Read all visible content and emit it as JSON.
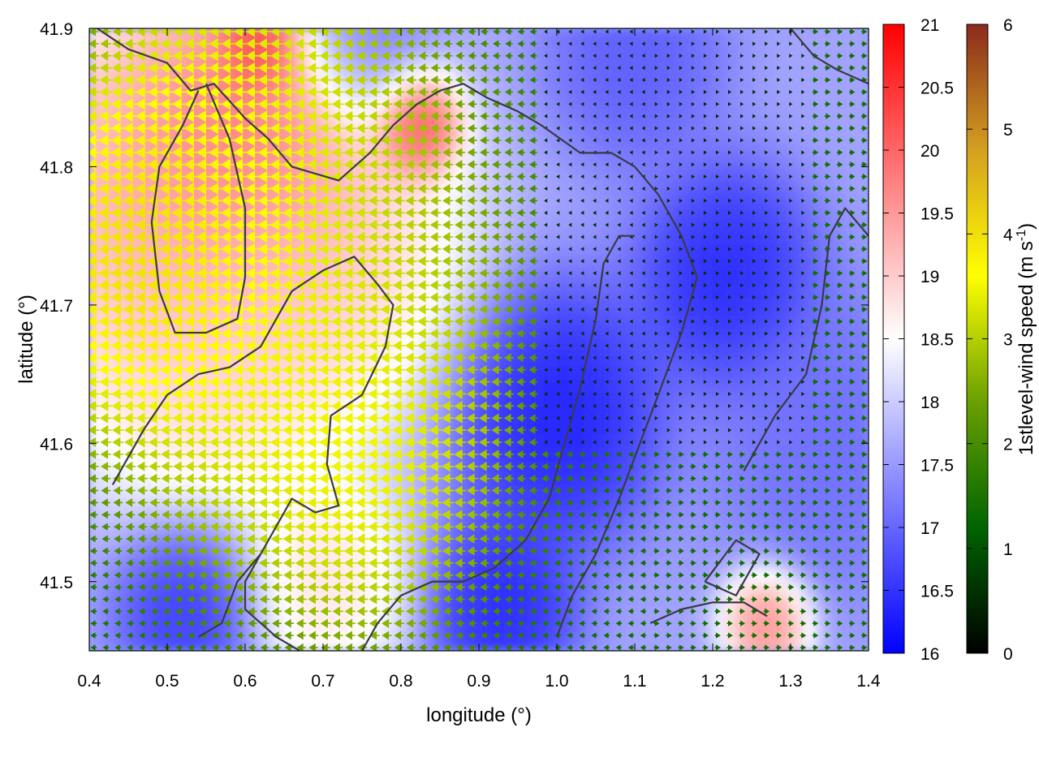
{
  "chart_data": {
    "type": "heatmap",
    "title": "",
    "xlabel": "longitude (°)",
    "ylabel": "latitude (°)",
    "xlim": [
      0.4,
      1.4
    ],
    "ylim": [
      41.45,
      41.9
    ],
    "xticks": [
      "0.4",
      "0.5",
      "0.6",
      "0.7",
      "0.8",
      "0.9",
      "1.0",
      "1.1",
      "1.2",
      "1.3",
      "1.4"
    ],
    "yticks": [
      "41.5",
      "41.6",
      "41.7",
      "41.8",
      "41.9"
    ],
    "temperature_colorbar": {
      "range": [
        16,
        21
      ],
      "ticks": [
        "16",
        "16.5",
        "17",
        "17.5",
        "18",
        "18.5",
        "19",
        "19.5",
        "20",
        "20.5",
        "21"
      ],
      "colors": [
        "#0000ff",
        "#ffffff",
        "#ff0000"
      ]
    },
    "wind_speed_colorbar": {
      "label_main": "1stlevel-wind speed (m s",
      "label_sup": "-1",
      "label_end": ")",
      "range": [
        0,
        6
      ],
      "ticks": [
        "0",
        "1",
        "2",
        "3",
        "4",
        "5",
        "6"
      ],
      "colors": [
        "#000000",
        "#006400",
        "#6aa000",
        "#ffff00",
        "#d4a020",
        "#8b2a1c"
      ]
    },
    "temperature_field_hotspots": [
      {
        "lon": 0.5,
        "lat": 41.78,
        "value": 19.6,
        "spread": 0.12
      },
      {
        "lon": 0.6,
        "lat": 41.82,
        "value": 20.3,
        "spread": 0.08
      },
      {
        "lon": 0.62,
        "lat": 41.89,
        "value": 21.0,
        "spread": 0.03
      },
      {
        "lon": 0.82,
        "lat": 41.83,
        "value": 20.8,
        "spread": 0.03
      },
      {
        "lon": 0.7,
        "lat": 41.74,
        "value": 19.2,
        "spread": 0.1
      },
      {
        "lon": 0.55,
        "lat": 41.66,
        "value": 19.0,
        "spread": 0.09
      },
      {
        "lon": 0.7,
        "lat": 41.5,
        "value": 19.0,
        "spread": 0.06
      },
      {
        "lon": 1.27,
        "lat": 41.47,
        "value": 20.0,
        "spread": 0.03
      },
      {
        "lon": 1.0,
        "lat": 41.62,
        "value": 16.1,
        "spread": 0.07
      },
      {
        "lon": 1.22,
        "lat": 41.72,
        "value": 16.2,
        "spread": 0.06
      },
      {
        "lon": 0.93,
        "lat": 41.48,
        "value": 16.2,
        "spread": 0.05
      },
      {
        "lon": 0.53,
        "lat": 41.48,
        "value": 16.4,
        "spread": 0.05
      },
      {
        "lon": 1.1,
        "lat": 41.88,
        "value": 16.8,
        "spread": 0.06
      },
      {
        "lon": 1.35,
        "lat": 41.6,
        "value": 17.0,
        "spread": 0.08
      },
      {
        "lon": 0.75,
        "lat": 41.89,
        "value": 17.0,
        "spread": 0.05
      }
    ],
    "wind_field_hotspots": [
      {
        "lon": 0.48,
        "lat": 41.74,
        "value": 4.8,
        "spread": 0.09
      },
      {
        "lon": 0.6,
        "lat": 41.82,
        "value": 4.0,
        "spread": 0.1
      },
      {
        "lon": 0.75,
        "lat": 41.6,
        "value": 4.0,
        "spread": 0.1
      },
      {
        "lon": 0.6,
        "lat": 41.7,
        "value": 3.8,
        "spread": 0.12
      },
      {
        "lon": 0.72,
        "lat": 41.76,
        "value": 3.2,
        "spread": 0.12
      }
    ],
    "coastline_polylines": [
      [
        [
          0.43,
          41.57
        ],
        [
          0.47,
          41.61
        ],
        [
          0.5,
          41.635
        ],
        [
          0.54,
          41.65
        ],
        [
          0.58,
          41.655
        ],
        [
          0.62,
          41.67
        ],
        [
          0.66,
          41.71
        ],
        [
          0.7,
          41.725
        ],
        [
          0.74,
          41.735
        ],
        [
          0.77,
          41.715
        ],
        [
          0.79,
          41.7
        ],
        [
          0.78,
          41.67
        ],
        [
          0.75,
          41.635
        ],
        [
          0.71,
          41.62
        ],
        [
          0.705,
          41.585
        ],
        [
          0.72,
          41.555
        ],
        [
          0.69,
          41.55
        ],
        [
          0.66,
          41.56
        ],
        [
          0.63,
          41.53
        ],
        [
          0.6,
          41.5
        ],
        [
          0.6,
          41.48
        ],
        [
          0.64,
          41.46
        ],
        [
          0.67,
          41.45
        ]
      ],
      [
        [
          0.54,
          41.46
        ],
        [
          0.57,
          41.47
        ],
        [
          0.59,
          41.5
        ],
        [
          0.62,
          41.52
        ]
      ],
      [
        [
          0.41,
          41.9
        ],
        [
          0.45,
          41.885
        ],
        [
          0.5,
          41.875
        ],
        [
          0.53,
          41.855
        ],
        [
          0.56,
          41.86
        ],
        [
          0.6,
          41.835
        ],
        [
          0.63,
          41.82
        ],
        [
          0.66,
          41.8
        ],
        [
          0.72,
          41.79
        ],
        [
          0.76,
          41.81
        ],
        [
          0.79,
          41.83
        ],
        [
          0.82,
          41.845
        ],
        [
          0.85,
          41.855
        ],
        [
          0.88,
          41.86
        ],
        [
          0.91,
          41.85
        ],
        [
          0.95,
          41.84
        ],
        [
          0.98,
          41.83
        ],
        [
          1.03,
          41.81
        ],
        [
          1.07,
          41.81
        ],
        [
          1.1,
          41.8
        ],
        [
          1.13,
          41.78
        ],
        [
          1.16,
          41.75
        ],
        [
          1.18,
          41.72
        ],
        [
          1.16,
          41.68
        ],
        [
          1.14,
          41.65
        ],
        [
          1.12,
          41.62
        ],
        [
          1.1,
          41.59
        ],
        [
          1.08,
          41.56
        ],
        [
          1.05,
          41.52
        ],
        [
          1.02,
          41.49
        ],
        [
          1.0,
          41.46
        ]
      ],
      [
        [
          0.55,
          41.86
        ],
        [
          0.58,
          41.82
        ],
        [
          0.6,
          41.77
        ],
        [
          0.6,
          41.72
        ],
        [
          0.59,
          41.69
        ],
        [
          0.55,
          41.68
        ],
        [
          0.51,
          41.68
        ],
        [
          0.49,
          41.71
        ],
        [
          0.48,
          41.76
        ],
        [
          0.49,
          41.8
        ],
        [
          0.52,
          41.83
        ],
        [
          0.54,
          41.855
        ]
      ],
      [
        [
          0.75,
          41.45
        ],
        [
          0.77,
          41.47
        ],
        [
          0.8,
          41.49
        ],
        [
          0.84,
          41.5
        ],
        [
          0.88,
          41.5
        ],
        [
          0.92,
          41.51
        ],
        [
          0.96,
          41.53
        ],
        [
          0.99,
          41.56
        ],
        [
          1.01,
          41.6
        ],
        [
          1.03,
          41.64
        ],
        [
          1.05,
          41.69
        ],
        [
          1.06,
          41.73
        ],
        [
          1.08,
          41.75
        ],
        [
          1.1,
          41.75
        ]
      ],
      [
        [
          1.19,
          41.5
        ],
        [
          1.23,
          41.49
        ],
        [
          1.26,
          41.52
        ],
        [
          1.23,
          41.53
        ],
        [
          1.19,
          41.5
        ]
      ],
      [
        [
          1.12,
          41.47
        ],
        [
          1.16,
          41.48
        ],
        [
          1.2,
          41.485
        ],
        [
          1.24,
          41.485
        ],
        [
          1.27,
          41.475
        ]
      ],
      [
        [
          1.24,
          41.58
        ],
        [
          1.28,
          41.62
        ],
        [
          1.32,
          41.65
        ],
        [
          1.34,
          41.7
        ],
        [
          1.35,
          41.75
        ],
        [
          1.37,
          41.77
        ],
        [
          1.4,
          41.75
        ]
      ],
      [
        [
          1.3,
          41.9
        ],
        [
          1.33,
          41.88
        ],
        [
          1.36,
          41.87
        ],
        [
          1.4,
          41.86
        ]
      ]
    ]
  }
}
